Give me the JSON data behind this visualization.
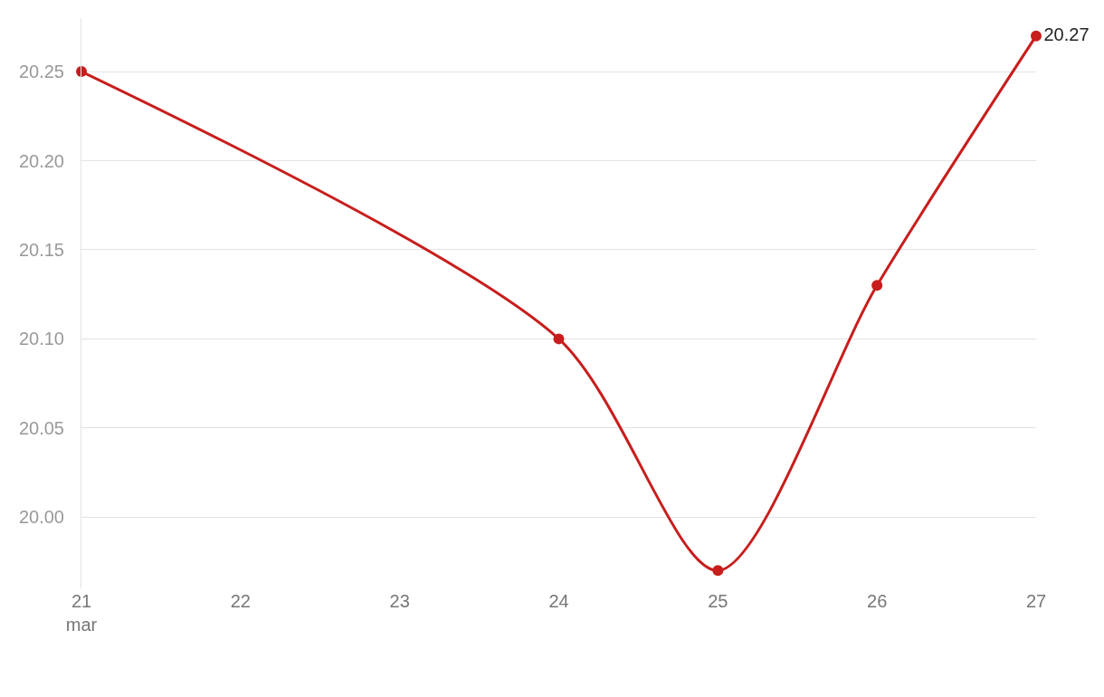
{
  "chart_data": {
    "type": "line",
    "x": [
      "--03-21",
      "--03-24",
      "--03-25",
      "--03-26",
      "--03-27"
    ],
    "series": [
      {
        "color": "#c71e1d",
        "values": [
          20.25,
          20.1,
          19.97,
          20.13,
          20.27
        ],
        "value_labels": [
          null,
          null,
          null,
          null,
          "20.27"
        ]
      }
    ],
    "xlim": [
      "--03-21",
      "--03-27"
    ],
    "xticks": [
      {
        "value": "--03-21",
        "label": "21\nmar"
      },
      {
        "value": "--03-22",
        "label": "22"
      },
      {
        "value": "--03-23",
        "label": "23"
      },
      {
        "value": "--03-24",
        "label": "24"
      },
      {
        "value": "--03-25",
        "label": "25"
      },
      {
        "value": "--03-26",
        "label": "26"
      },
      {
        "value": "--03-27",
        "label": "27"
      }
    ],
    "ylim": [
      19.96,
      20.28
    ],
    "yticks": [
      {
        "value": 20.0,
        "label": "20.00"
      },
      {
        "value": 20.05,
        "label": "20.05"
      },
      {
        "value": 20.1,
        "label": "20.10"
      },
      {
        "value": 20.15,
        "label": "20.15"
      },
      {
        "value": 20.2,
        "label": "20.20"
      },
      {
        "value": 20.25,
        "label": "20.25"
      }
    ],
    "grid": "y",
    "marker": "circle",
    "line_style": "solid"
  }
}
